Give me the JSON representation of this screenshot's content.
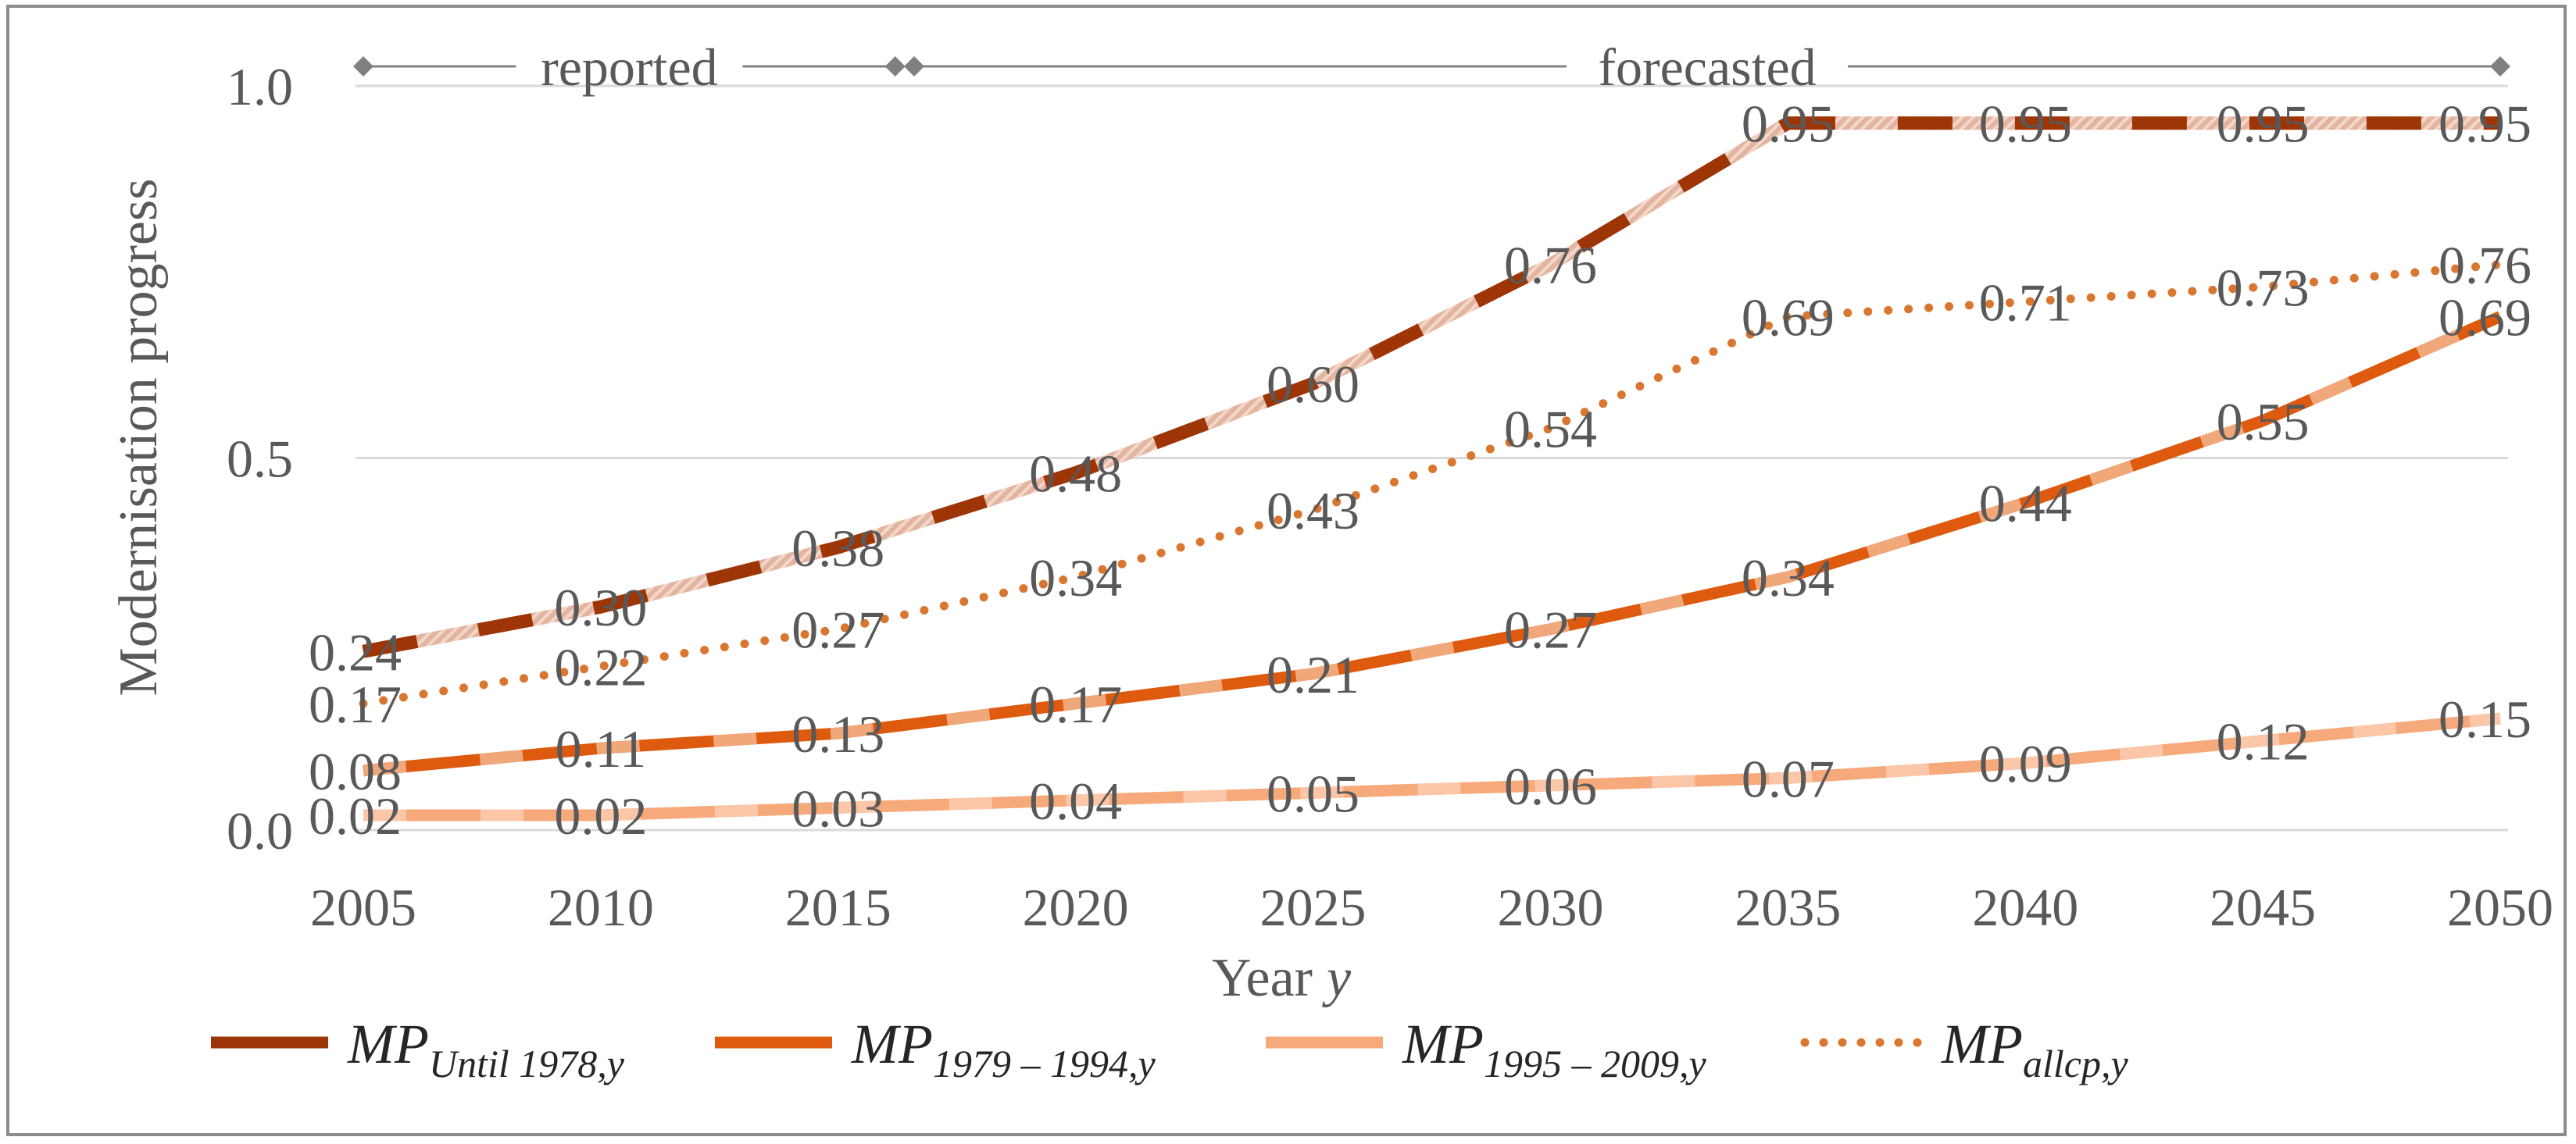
{
  "chart_data": {
    "type": "line",
    "title": "",
    "xlabel": "Year",
    "xlabel_var": "y",
    "ylabel": "Modernisation progress",
    "ylim": [
      0.0,
      1.0
    ],
    "y_ticks": [
      "0.0",
      "0.5",
      "1.0"
    ],
    "y_tick_values": [
      0.0,
      0.5,
      1.0
    ],
    "x": [
      2005,
      2010,
      2015,
      2020,
      2025,
      2030,
      2035,
      2040,
      2045,
      2050
    ],
    "x_tick_labels": [
      "2005",
      "2010",
      "2015",
      "2020",
      "2025",
      "2030",
      "2035",
      "2040",
      "2045",
      "2050"
    ],
    "grid": "horizontal",
    "legend_position": "bottom",
    "phases": [
      {
        "label": "reported",
        "start": 2005,
        "end": 2016.2
      },
      {
        "label": "forecasted",
        "start": 2016.6,
        "end": 2050
      }
    ],
    "series": [
      {
        "name": "MP_Until 1978,y",
        "legend_main": "MP",
        "legend_sub": "Until 1978,y",
        "color": "#9e3507",
        "style": "solid",
        "values": [
          0.24,
          0.3,
          0.38,
          0.48,
          0.6,
          0.76,
          0.95,
          0.95,
          0.95,
          0.95
        ],
        "labels": [
          "0.24",
          "0.30",
          "0.38",
          "0.48",
          "0.60",
          "0.76",
          "0.95",
          "0.95",
          "0.95",
          "0.95"
        ]
      },
      {
        "name": "MP_1979 – 1994,y",
        "legend_main": "MP",
        "legend_sub": "1979 – 1994,y",
        "color": "#dd5a0f",
        "style": "solid",
        "values": [
          0.08,
          0.11,
          0.13,
          0.17,
          0.21,
          0.27,
          0.34,
          0.44,
          0.55,
          0.69
        ],
        "labels": [
          "0.08",
          "0.11",
          "0.13",
          "0.17",
          "0.21",
          "0.27",
          "0.34",
          "0.44",
          "0.55",
          "0.69"
        ]
      },
      {
        "name": "MP_1995 – 2009,y",
        "legend_main": "MP",
        "legend_sub": "1995 – 2009,y",
        "color": "#f6a97b",
        "style": "solid",
        "values": [
          0.02,
          0.02,
          0.03,
          0.04,
          0.05,
          0.06,
          0.07,
          0.09,
          0.12,
          0.15
        ],
        "labels": [
          "0.02",
          "0.02",
          "0.03",
          "0.04",
          "0.05",
          "0.06",
          "0.07",
          "0.09",
          "0.12",
          "0.15"
        ]
      },
      {
        "name": "MP_allcp,y",
        "legend_main": "MP",
        "legend_sub": "allcp,y",
        "color": "#d9762f",
        "style": "dotted",
        "values": [
          0.17,
          0.22,
          0.27,
          0.34,
          0.43,
          0.54,
          0.69,
          0.71,
          0.73,
          0.76
        ],
        "labels": [
          "0.17",
          "0.22",
          "0.27",
          "0.34",
          "0.43",
          "0.54",
          "0.69",
          "0.71",
          "0.73",
          "0.76"
        ]
      }
    ]
  }
}
